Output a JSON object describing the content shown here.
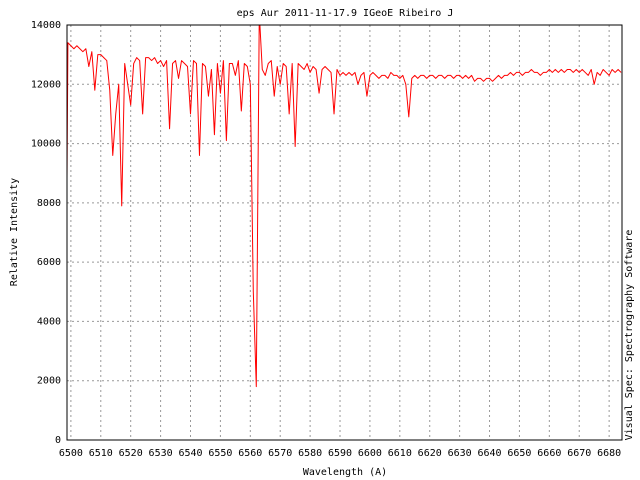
{
  "chart_data": {
    "type": "line",
    "title": "eps Aur 2011-11-17.9 IGeoE Ribeiro J",
    "x_label": "Wavelength (A)",
    "y_label": "Relative Intensity",
    "side_note": "Visual Spec: Spectrography Software",
    "color": "#ff0000",
    "grid": true,
    "xlim": [
      6498.7,
      6684.3
    ],
    "ylim": [
      0,
      14000
    ],
    "xticks": [
      6500,
      6510,
      6520,
      6530,
      6540,
      6550,
      6560,
      6570,
      6580,
      6590,
      6600,
      6610,
      6620,
      6630,
      6640,
      6650,
      6660,
      6670,
      6680
    ],
    "yticks": [
      0,
      2000,
      4000,
      6000,
      8000,
      10000,
      12000,
      14000
    ],
    "x": [
      6498.7,
      6499,
      6500,
      6501,
      6502,
      6503,
      6504,
      6505,
      6506,
      6507,
      6508,
      6509,
      6510,
      6511,
      6512,
      6513,
      6514,
      6515,
      6516,
      6517,
      6518,
      6519,
      6520,
      6521,
      6522,
      6523,
      6524,
      6525,
      6526,
      6527,
      6528,
      6529,
      6530,
      6531,
      6532,
      6533,
      6534,
      6535,
      6536,
      6537,
      6538,
      6539,
      6540,
      6541,
      6542,
      6543,
      6544,
      6545,
      6546,
      6547,
      6548,
      6549,
      6550,
      6551,
      6552,
      6553,
      6554,
      6555,
      6556,
      6557,
      6558,
      6559,
      6560,
      6561,
      6562,
      6563,
      6564,
      6565,
      6566,
      6567,
      6568,
      6569,
      6570,
      6571,
      6572,
      6573,
      6574,
      6575,
      6576,
      6577,
      6578,
      6579,
      6580,
      6581,
      6582,
      6583,
      6584,
      6585,
      6586,
      6587,
      6588,
      6589,
      6590,
      6591,
      6592,
      6593,
      6594,
      6595,
      6596,
      6597,
      6598,
      6599,
      6600,
      6601,
      6602,
      6603,
      6604,
      6605,
      6606,
      6607,
      6608,
      6609,
      6610,
      6611,
      6612,
      6613,
      6614,
      6615,
      6616,
      6617,
      6618,
      6619,
      6620,
      6621,
      6622,
      6623,
      6624,
      6625,
      6626,
      6627,
      6628,
      6629,
      6630,
      6631,
      6632,
      6633,
      6634,
      6635,
      6636,
      6637,
      6638,
      6639,
      6640,
      6641,
      6642,
      6643,
      6644,
      6645,
      6646,
      6647,
      6648,
      6649,
      6650,
      6651,
      6652,
      6653,
      6654,
      6655,
      6656,
      6657,
      6658,
      6659,
      6660,
      6661,
      6662,
      6663,
      6664,
      6665,
      6666,
      6667,
      6668,
      6669,
      6670,
      6671,
      6672,
      6673,
      6674,
      6675,
      6676,
      6677,
      6678,
      6679,
      6680,
      6681,
      6682,
      6683,
      6684
    ],
    "values": [
      8800,
      13400,
      13300,
      13200,
      13300,
      13200,
      13100,
      13200,
      12600,
      13100,
      11800,
      13000,
      13000,
      12900,
      12800,
      11800,
      9600,
      11000,
      12000,
      7900,
      12700,
      12000,
      11300,
      12700,
      12900,
      12800,
      11000,
      12900,
      12900,
      12800,
      12900,
      12700,
      12800,
      12600,
      12800,
      10500,
      12700,
      12800,
      12200,
      12800,
      12700,
      12600,
      11000,
      12800,
      12700,
      9600,
      12700,
      12600,
      11600,
      12500,
      10300,
      12700,
      11700,
      12800,
      10100,
      12700,
      12700,
      12300,
      12800,
      11100,
      12700,
      12600,
      12000,
      5000,
      1800,
      14400,
      12500,
      12300,
      12700,
      12800,
      11600,
      12600,
      12000,
      12700,
      12600,
      11000,
      12700,
      9900,
      12700,
      12600,
      12500,
      12700,
      12400,
      12600,
      12500,
      11700,
      12500,
      12600,
      12500,
      12400,
      11000,
      12500,
      12300,
      12400,
      12300,
      12400,
      12300,
      12400,
      12000,
      12300,
      12400,
      11600,
      12300,
      12400,
      12300,
      12200,
      12300,
      12300,
      12200,
      12400,
      12300,
      12300,
      12200,
      12300,
      12000,
      10900,
      12200,
      12300,
      12200,
      12300,
      12300,
      12200,
      12300,
      12300,
      12200,
      12300,
      12300,
      12200,
      12300,
      12300,
      12200,
      12300,
      12300,
      12200,
      12300,
      12200,
      12300,
      12100,
      12200,
      12200,
      12100,
      12200,
      12200,
      12100,
      12200,
      12300,
      12200,
      12300,
      12300,
      12400,
      12300,
      12400,
      12400,
      12300,
      12400,
      12400,
      12500,
      12400,
      12400,
      12300,
      12400,
      12400,
      12500,
      12400,
      12500,
      12400,
      12500,
      12400,
      12500,
      12500,
      12400,
      12500,
      12400,
      12500,
      12400,
      12300,
      12500,
      12000,
      12400,
      12300,
      12500,
      12400,
      12300,
      12500,
      12400,
      12500,
      12400
    ]
  }
}
